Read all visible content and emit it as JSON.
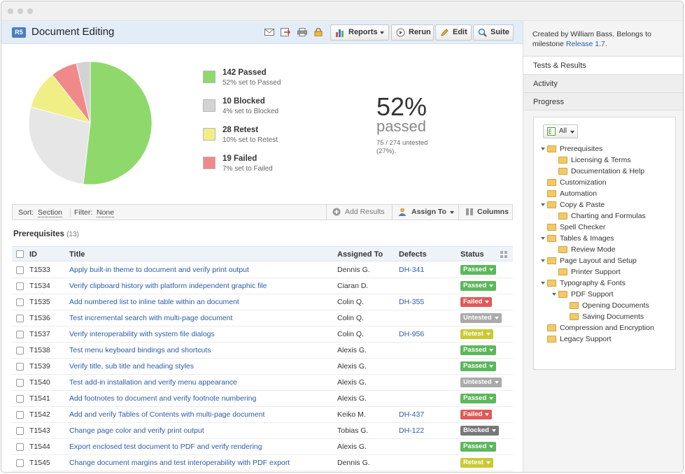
{
  "header": {
    "badge": "R5",
    "title": "Document Editing",
    "buttons": {
      "reports": "Reports",
      "rerun": "Rerun",
      "edit": "Edit",
      "suite": "Suite"
    }
  },
  "summary": {
    "legend": [
      {
        "title": "142 Passed",
        "sub": "52% set to Passed",
        "color": "#8fd96c"
      },
      {
        "title": "10 Blocked",
        "sub": "4% set to Blocked",
        "color": "#d3d3d3"
      },
      {
        "title": "28 Retest",
        "sub": "10% set to Retest",
        "color": "#f0ef86"
      },
      {
        "title": "19 Failed",
        "sub": "7% set to Failed",
        "color": "#f08a8a"
      }
    ],
    "percent": "52%",
    "percent_label": "passed",
    "untested": "75 / 274 untested (27%)."
  },
  "chart_data": {
    "type": "pie",
    "slices": [
      {
        "label": "Passed",
        "value": 142,
        "color": "#8fd96c"
      },
      {
        "label": "Untested",
        "value": 75,
        "color": "#e6e6e6"
      },
      {
        "label": "Retest",
        "value": 28,
        "color": "#f0ef86"
      },
      {
        "label": "Failed",
        "value": 19,
        "color": "#f08a8a"
      },
      {
        "label": "Blocked",
        "value": 10,
        "color": "#d3d3d3"
      }
    ]
  },
  "filterbar": {
    "sort_label": "Sort:",
    "sort_value": "Section",
    "filter_label": "Filter:",
    "filter_value": "None",
    "add_results": "Add Results",
    "assign_to": "Assign To",
    "columns": "Columns"
  },
  "section": {
    "title": "Prerequisites",
    "count": "(13)"
  },
  "table": {
    "headers": {
      "id": "ID",
      "title": "Title",
      "assigned": "Assigned To",
      "defects": "Defects",
      "status": "Status"
    },
    "rows": [
      {
        "id": "T1533",
        "title": "Apply built-in theme to document and verify print output",
        "assigned": "Dennis G.",
        "defect": "DH-341",
        "status": "Passed"
      },
      {
        "id": "T1534",
        "title": "Verify clipboard history with platform independent graphic file",
        "assigned": "Ciaran D.",
        "defect": "",
        "status": "Passed"
      },
      {
        "id": "T1535",
        "title": "Add numbered list to inline table within an document",
        "assigned": "Colin Q.",
        "defect": "DH-355",
        "status": "Failed"
      },
      {
        "id": "T1536",
        "title": "Test incremental search with multi-page document",
        "assigned": "Colin Q.",
        "defect": "",
        "status": "Untested"
      },
      {
        "id": "T1537",
        "title": "Verify interoperability with system file dialogs",
        "assigned": "Colin Q.",
        "defect": "DH-956",
        "status": "Retest"
      },
      {
        "id": "T1538",
        "title": "Test menu keyboard bindings and shortcuts",
        "assigned": "Alexis G.",
        "defect": "",
        "status": "Passed"
      },
      {
        "id": "T1539",
        "title": "Verify title, sub title and heading styles",
        "assigned": "Alexis G.",
        "defect": "",
        "status": "Passed"
      },
      {
        "id": "T1540",
        "title": "Test add-in installation and verify menu appearance",
        "assigned": "Alexis G.",
        "defect": "",
        "status": "Untested"
      },
      {
        "id": "T1541",
        "title": "Add footnotes to document and verify footnote numbering",
        "assigned": "Alexis G.",
        "defect": "",
        "status": "Passed"
      },
      {
        "id": "T1542",
        "title": "Add and verify Tables of Contents with multi-page document",
        "assigned": "Keiko M.",
        "defect": "DH-437",
        "status": "Failed"
      },
      {
        "id": "T1543",
        "title": "Change page color and verify print output",
        "assigned": "Tobias G.",
        "defect": "DH-122",
        "status": "Blocked"
      },
      {
        "id": "T1544",
        "title": "Export enclosed test document to PDF and verify rendering",
        "assigned": "Alexis G.",
        "defect": "",
        "status": "Passed"
      },
      {
        "id": "T1545",
        "title": "Change document margins and test interoperability with PDF export",
        "assigned": "Dennis G.",
        "defect": "",
        "status": "Retest"
      }
    ]
  },
  "status_colors": {
    "Passed": "#5cb85c",
    "Failed": "#e05a5a",
    "Untested": "#aaaaaa",
    "Retest": "#c9c934",
    "Blocked": "#777777"
  },
  "sidebar": {
    "created_prefix": "Created by William Bass. Belongs to milestone ",
    "milestone": "Release 1.7",
    "created_suffix": ".",
    "tabs": [
      "Tests & Results",
      "Activity",
      "Progress"
    ],
    "all_label": "All",
    "tree": [
      {
        "label": "Prerequisites",
        "level": 0,
        "expanded": true
      },
      {
        "label": "Licensing & Terms",
        "level": 1
      },
      {
        "label": "Documentation & Help",
        "level": 1
      },
      {
        "label": "Customization",
        "level": 0
      },
      {
        "label": "Automation",
        "level": 0
      },
      {
        "label": "Copy & Paste",
        "level": 0,
        "expanded": true
      },
      {
        "label": "Charting and Formulas",
        "level": 1
      },
      {
        "label": "Spell Checker",
        "level": 0
      },
      {
        "label": "Tables & Images",
        "level": 0,
        "expanded": true
      },
      {
        "label": "Review Mode",
        "level": 1
      },
      {
        "label": "Page Layout and Setup",
        "level": 0,
        "expanded": true
      },
      {
        "label": "Printer Support",
        "level": 1
      },
      {
        "label": "Typography & Fonts",
        "level": 0,
        "expanded": true
      },
      {
        "label": "PDF Support",
        "level": 1,
        "expanded": true
      },
      {
        "label": "Opening Documents",
        "level": 2
      },
      {
        "label": "Saving Documents",
        "level": 2
      },
      {
        "label": "Compression and Encryption",
        "level": 0
      },
      {
        "label": "Legacy Support",
        "level": 0
      }
    ]
  }
}
